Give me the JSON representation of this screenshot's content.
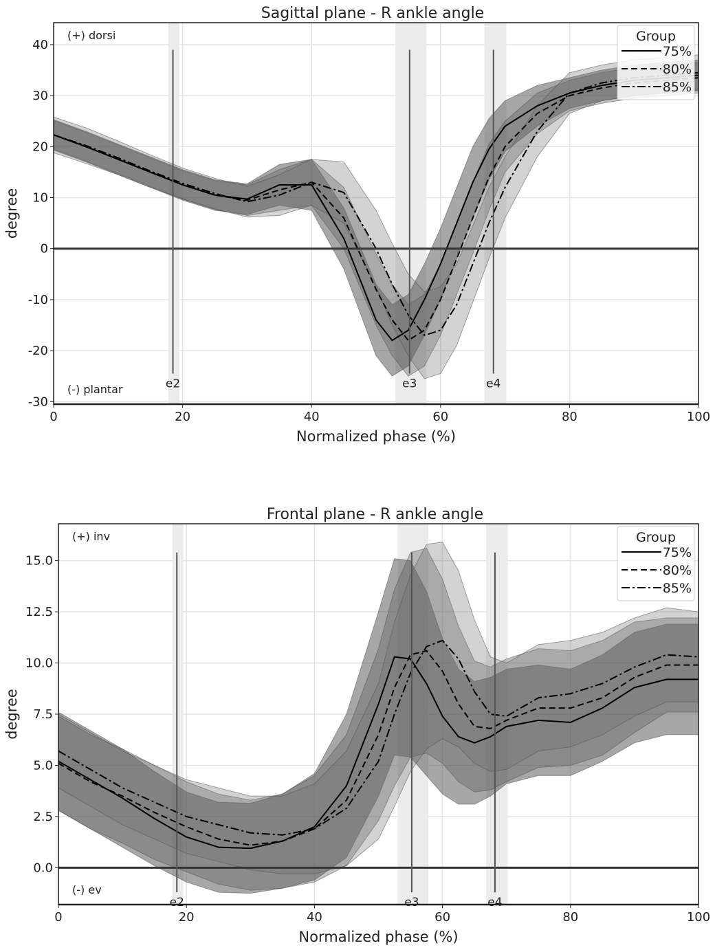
{
  "chart_data": [
    {
      "type": "line",
      "title": "Sagittal plane - R ankle angle",
      "xlabel": "Normalized phase (%)",
      "ylabel": "degree",
      "xlim": [
        0,
        100
      ],
      "ylim": [
        -30.5,
        44.3
      ],
      "xticks": [
        0,
        20,
        40,
        60,
        80,
        100
      ],
      "yticks": [
        -30,
        -20,
        -10,
        0,
        10,
        20,
        30,
        40
      ],
      "ytick_labels": [
        "-30",
        "-20",
        "-10",
        "0",
        "10",
        "20",
        "30",
        "40"
      ],
      "grid": true,
      "annot_top": "(+) dorsi",
      "annot_bottom": "(-) plantar",
      "legend": {
        "title": "Group",
        "placement": "top-right"
      },
      "events": [
        {
          "label": "e2",
          "x": 18.5,
          "span": [
            17.8,
            19.5
          ]
        },
        {
          "label": "e3",
          "x": 55.2,
          "span": [
            53,
            57.8
          ]
        },
        {
          "label": "e4",
          "x": 68.2,
          "span": [
            66.8,
            70.2
          ]
        }
      ],
      "event_line_range": [
        -24.5,
        39
      ],
      "x": [
        0,
        5,
        10,
        15,
        20,
        25,
        30,
        35,
        40,
        45,
        50,
        52.5,
        55,
        57.5,
        60,
        62.5,
        65,
        67.5,
        70,
        75,
        80,
        85,
        90,
        95,
        100
      ],
      "series": [
        {
          "name": "75%",
          "dash": "solid",
          "values": [
            22.3,
            20,
            17.5,
            15,
            12.5,
            10.5,
            9.7,
            12.5,
            12.5,
            2,
            -14,
            -18,
            -16,
            -10,
            -3,
            5,
            13,
            19.5,
            24,
            28,
            30.5,
            32,
            33,
            33.5,
            34
          ],
          "sd": [
            3,
            3,
            3,
            3,
            3,
            3,
            3,
            4,
            5,
            6,
            7,
            7,
            7,
            7,
            7,
            7,
            7,
            6,
            5,
            4,
            3,
            3,
            3,
            3,
            3
          ]
        },
        {
          "name": "80%",
          "dash": "dashed",
          "values": [
            22.3,
            20,
            17.5,
            15,
            12.5,
            10.5,
            9.5,
            11.5,
            13,
            6,
            -8,
            -14,
            -18,
            -16,
            -10,
            -2,
            6,
            14,
            20,
            26.5,
            30,
            31.5,
            32.5,
            33,
            33.5
          ],
          "sd": [
            2.8,
            2.8,
            2.8,
            2.8,
            2.8,
            2.8,
            3,
            4,
            4.5,
            6,
            7,
            7,
            7,
            7,
            7,
            7,
            7,
            6.5,
            5,
            4,
            3,
            3,
            3,
            3,
            3
          ]
        },
        {
          "name": "85%",
          "dash": "dashdot",
          "values": [
            22.3,
            20.2,
            17.8,
            15.2,
            12.8,
            10.8,
            9.2,
            10.5,
            13,
            11,
            0,
            -7,
            -13,
            -17,
            -16,
            -11,
            -3,
            5,
            12,
            23,
            30.5,
            32.5,
            33.5,
            34,
            34.5
          ],
          "sd": [
            3.5,
            3.5,
            3.3,
            3.2,
            3,
            3,
            3,
            4,
            4.5,
            6,
            7.5,
            8,
            8,
            8.5,
            8.5,
            8,
            7.5,
            7,
            6,
            5,
            4,
            3.5,
            3.5,
            3.5,
            3.5
          ]
        }
      ]
    },
    {
      "type": "line",
      "title": "Frontal plane - R ankle angle",
      "xlabel": "Normalized phase (%)",
      "ylabel": "degree",
      "xlim": [
        0,
        100
      ],
      "ylim": [
        -1.8,
        16.8
      ],
      "xticks": [
        0,
        20,
        40,
        60,
        80,
        100
      ],
      "yticks": [
        0,
        2.5,
        5,
        7.5,
        10,
        12.5,
        15
      ],
      "ytick_labels": [
        "0.0",
        "2.5",
        "5.0",
        "7.5",
        "10.0",
        "12.5",
        "15.0"
      ],
      "grid": true,
      "annot_top": "(+) inv",
      "annot_bottom": "(-) ev",
      "legend": {
        "title": "Group",
        "placement": "top-right"
      },
      "events": [
        {
          "label": "e2",
          "x": 18.5,
          "span": [
            17.8,
            19.5
          ]
        },
        {
          "label": "e3",
          "x": 55.2,
          "span": [
            53,
            57.8
          ]
        },
        {
          "label": "e4",
          "x": 68.2,
          "span": [
            66.8,
            70.2
          ]
        }
      ],
      "event_line_range": [
        -1.2,
        15.4
      ],
      "x": [
        0,
        5,
        10,
        15,
        20,
        25,
        30,
        35,
        40,
        45,
        50,
        52.5,
        55,
        57.5,
        60,
        62.5,
        65,
        67.5,
        70,
        75,
        80,
        85,
        90,
        95,
        100
      ],
      "series": [
        {
          "name": "75%",
          "dash": "solid",
          "values": [
            5.2,
            4.3,
            3.4,
            2.4,
            1.5,
            1.0,
            0.95,
            1.3,
            2.0,
            4.0,
            8.0,
            10.3,
            10.2,
            9.0,
            7.4,
            6.4,
            6.1,
            6.4,
            6.9,
            7.2,
            7.1,
            7.8,
            8.8,
            9.2,
            9.2
          ],
          "sd": [
            2.4,
            2.4,
            2.4,
            2.3,
            2.2,
            2.2,
            2.2,
            2.3,
            2.6,
            3.5,
            4.5,
            4.8,
            4.8,
            4.5,
            3.8,
            3.3,
            3,
            2.9,
            2.8,
            2.7,
            2.6,
            2.6,
            2.7,
            2.7,
            2.7
          ]
        },
        {
          "name": "80%",
          "dash": "dashed",
          "values": [
            5.1,
            4.2,
            3.5,
            2.7,
            2.0,
            1.4,
            1.1,
            1.3,
            1.9,
            3.3,
            6.5,
            8.8,
            10.4,
            10.6,
            9.6,
            8.0,
            6.9,
            6.8,
            7.2,
            7.8,
            7.8,
            8.3,
            9.3,
            9.9,
            9.9
          ],
          "sd": [
            2.3,
            2.3,
            2.3,
            2.3,
            2.2,
            2.2,
            2.2,
            2.3,
            2.6,
            3.2,
            4.2,
            4.8,
            5,
            5,
            4.5,
            3.8,
            3.2,
            3,
            3,
            2.9,
            2.8,
            2.8,
            2.7,
            2.3,
            2.3
          ]
        },
        {
          "name": "85%",
          "dash": "dashdot",
          "values": [
            5.7,
            4.8,
            3.9,
            3.2,
            2.5,
            2.1,
            1.7,
            1.6,
            1.9,
            2.9,
            5.2,
            7.5,
            9.5,
            10.8,
            11.1,
            10.2,
            8.6,
            7.5,
            7.4,
            8.3,
            8.5,
            9.0,
            9.8,
            10.4,
            10.3
          ],
          "sd": [
            1.8,
            1.8,
            1.8,
            1.8,
            1.8,
            1.8,
            1.8,
            1.9,
            2.2,
            2.8,
            3.8,
            4.5,
            4.8,
            5,
            4.8,
            4.3,
            3.5,
            2.8,
            2.6,
            2.6,
            2.6,
            2.5,
            2.4,
            2.3,
            2.2
          ]
        }
      ]
    }
  ]
}
